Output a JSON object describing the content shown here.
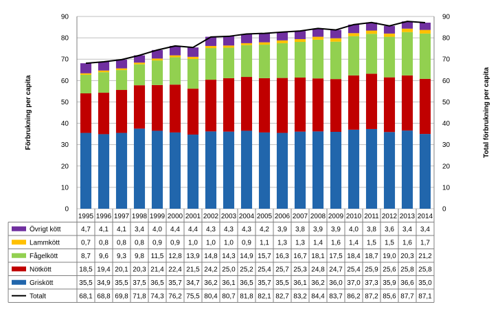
{
  "chart_data": {
    "type": "bar",
    "stacked": true,
    "categories": [
      "1995",
      "1996",
      "1997",
      "1998",
      "1999",
      "2000",
      "2001",
      "2002",
      "2003",
      "2004",
      "2005",
      "2006",
      "2007",
      "2008",
      "2009",
      "2010",
      "2011",
      "2012",
      "2013",
      "2014"
    ],
    "ylabel_left": "Förbrukning per capita",
    "ylabel_right": "Total förbrukning per capita",
    "ylim": [
      0,
      90
    ],
    "yticks": [
      0,
      10,
      20,
      30,
      40,
      50,
      60,
      70,
      80,
      90
    ],
    "grid": true,
    "series": [
      {
        "name": "Griskött",
        "color": "#2166ac",
        "values": [
          35.5,
          34.9,
          35.5,
          37.5,
          36.5,
          35.7,
          34.7,
          36.2,
          36.1,
          36.5,
          35.7,
          35.5,
          36.1,
          36.2,
          36.0,
          37.0,
          37.3,
          35.9,
          36.6,
          35.0
        ],
        "labels": [
          "35,5",
          "34,9",
          "35,5",
          "37,5",
          "36,5",
          "35,7",
          "34,7",
          "36,2",
          "36,1",
          "36,5",
          "35,7",
          "35,5",
          "36,1",
          "36,2",
          "36,0",
          "37,0",
          "37,3",
          "35,9",
          "36,6",
          "35,0"
        ]
      },
      {
        "name": "Nötkött",
        "color": "#c00000",
        "values": [
          18.5,
          19.4,
          20.1,
          20.3,
          21.4,
          22.4,
          21.5,
          24.2,
          25.0,
          25.2,
          25.4,
          25.7,
          25.3,
          24.8,
          24.7,
          25.4,
          25.9,
          25.6,
          25.8,
          25.8
        ],
        "labels": [
          "18,5",
          "19,4",
          "20,1",
          "20,3",
          "21,4",
          "22,4",
          "21,5",
          "24,2",
          "25,0",
          "25,2",
          "25,4",
          "25,7",
          "25,3",
          "24,8",
          "24,7",
          "25,4",
          "25,9",
          "25,6",
          "25,8",
          "25,8"
        ]
      },
      {
        "name": "Fågelkött",
        "color": "#92d050",
        "values": [
          8.7,
          9.6,
          9.3,
          9.8,
          11.5,
          12.8,
          13.9,
          14.8,
          14.3,
          14.9,
          15.7,
          16.3,
          16.7,
          18.1,
          17.5,
          18.4,
          18.7,
          19.0,
          20.3,
          21.2
        ],
        "labels": [
          "8,7",
          "9,6",
          "9,3",
          "9,8",
          "11,5",
          "12,8",
          "13,9",
          "14,8",
          "14,3",
          "14,9",
          "15,7",
          "16,3",
          "16,7",
          "18,1",
          "17,5",
          "18,4",
          "18,7",
          "19,0",
          "20,3",
          "21,2"
        ]
      },
      {
        "name": "Lammkött",
        "color": "#ffc000",
        "values": [
          0.7,
          0.8,
          0.8,
          0.8,
          0.9,
          0.9,
          1.0,
          1.0,
          1.0,
          0.9,
          1.1,
          1.3,
          1.3,
          1.4,
          1.6,
          1.4,
          1.5,
          1.5,
          1.6,
          1.7
        ],
        "labels": [
          "0,7",
          "0,8",
          "0,8",
          "0,8",
          "0,9",
          "0,9",
          "1,0",
          "1,0",
          "1,0",
          "0,9",
          "1,1",
          "1,3",
          "1,3",
          "1,4",
          "1,6",
          "1,4",
          "1,5",
          "1,5",
          "1,6",
          "1,7"
        ]
      },
      {
        "name": "Övrigt kött",
        "color": "#7030a0",
        "values": [
          4.7,
          4.1,
          4.1,
          3.4,
          4.0,
          4.4,
          4.4,
          4.3,
          4.3,
          4.3,
          4.2,
          3.9,
          3.8,
          3.9,
          3.9,
          4.0,
          3.8,
          3.6,
          3.4,
          3.4
        ],
        "labels": [
          "4,7",
          "4,1",
          "4,1",
          "3,4",
          "4,0",
          "4,4",
          "4,4",
          "4,3",
          "4,3",
          "4,3",
          "4,2",
          "3,9",
          "3,8",
          "3,9",
          "3,9",
          "4,0",
          "3,8",
          "3,6",
          "3,4",
          "3,4"
        ]
      }
    ],
    "total": {
      "name": "Totalt",
      "color": "#000000",
      "values": [
        68.1,
        68.8,
        69.8,
        71.8,
        74.3,
        76.2,
        75.5,
        80.4,
        80.7,
        81.8,
        82.1,
        82.7,
        83.2,
        84.4,
        83.7,
        86.2,
        87.2,
        85.6,
        87.7,
        87.1
      ],
      "labels": [
        "68,1",
        "68,8",
        "69,8",
        "71,8",
        "74,3",
        "76,2",
        "75,5",
        "80,4",
        "80,7",
        "81,8",
        "82,1",
        "82,7",
        "83,2",
        "84,4",
        "83,7",
        "86,2",
        "87,2",
        "85,6",
        "87,7",
        "87,1"
      ]
    },
    "table_rows": [
      "Övrigt kött",
      "Lammkött",
      "Fågelkött",
      "Nötkött",
      "Griskött",
      "Totalt"
    ]
  }
}
